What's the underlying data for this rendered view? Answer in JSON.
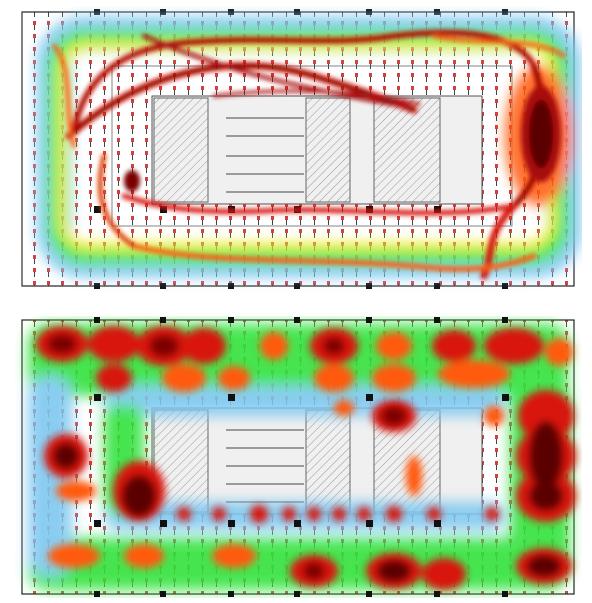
{
  "figure": {
    "panels": [
      {
        "id": "top",
        "kind": "trajectory-density-heatmap"
      },
      {
        "id": "bottom",
        "kind": "grid-density-heatmap"
      }
    ],
    "colormap": [
      "#7ec8f0",
      "#32e23c",
      "#f4ee22",
      "#ff5a10",
      "#d8120e",
      "#5a0000"
    ],
    "floorplan": {
      "wall_color": "#333333",
      "room_fill": "#f2f2f2",
      "seat_marker_color": "#d23a3a"
    }
  }
}
